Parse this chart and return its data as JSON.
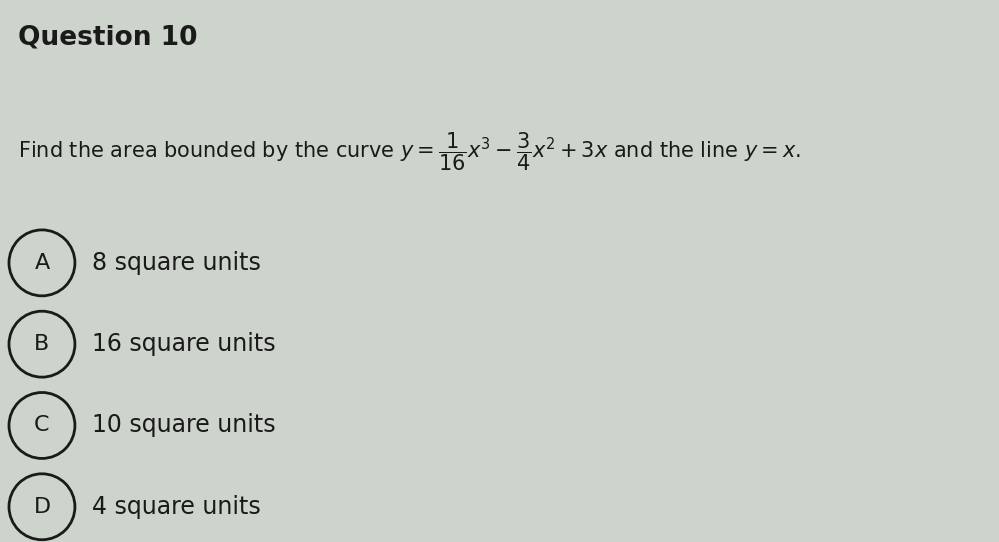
{
  "title": "Question 10",
  "question_line": "Find the area bounded by the curve $y = \\dfrac{1}{16}x^3 - \\dfrac{3}{4}x^2 + 3x$ and the line $y = x$.",
  "options": [
    {
      "label": "A",
      "text": "8 square units"
    },
    {
      "label": "B",
      "text": "16 square units"
    },
    {
      "label": "C",
      "text": "10 square units"
    },
    {
      "label": "D",
      "text": "4 square units"
    }
  ],
  "bg_color": "#cdd4cc",
  "text_color": "#1a1a1a",
  "title_fontsize": 19,
  "question_fontsize": 15,
  "option_fontsize": 17,
  "figwidth": 9.99,
  "figheight": 5.42
}
